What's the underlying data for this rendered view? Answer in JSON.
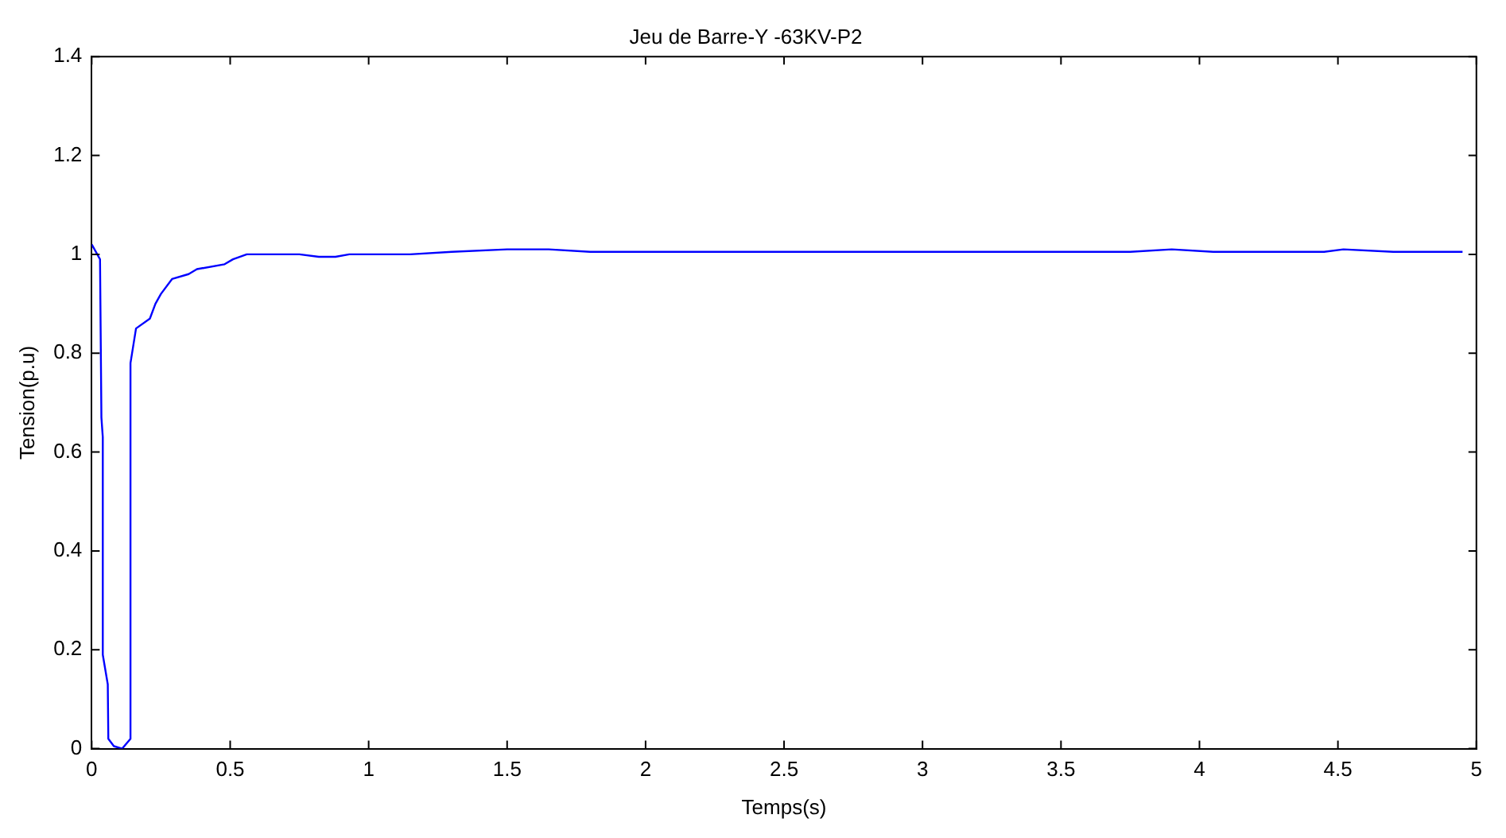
{
  "chart_data": {
    "type": "line",
    "title": "Jeu de Barre-Y -63KV-P2",
    "xlabel": "Temps(s)",
    "ylabel": "Tension(p.u)",
    "x": [
      0,
      0.03,
      0.035,
      0.04,
      0.04,
      0.058,
      0.06,
      0.08,
      0.11,
      0.14,
      0.14,
      0.16,
      0.21,
      0.23,
      0.25,
      0.29,
      0.35,
      0.38,
      0.48,
      0.51,
      0.56,
      0.75,
      0.82,
      0.88,
      0.93,
      1.15,
      1.3,
      1.5,
      1.65,
      1.8,
      3.75,
      3.9,
      4.05,
      4.45,
      4.52,
      4.7,
      4.95
    ],
    "series": [
      {
        "color": "#0000ff",
        "values": [
          1.02,
          0.99,
          0.67,
          0.63,
          0.19,
          0.13,
          0.02,
          0.005,
          0,
          0.02,
          0.78,
          0.85,
          0.87,
          0.9,
          0.92,
          0.95,
          0.96,
          0.97,
          0.98,
          0.99,
          1.0,
          1.0,
          0.995,
          0.995,
          1.0,
          1.0,
          1.005,
          1.01,
          1.01,
          1.005,
          1.005,
          1.01,
          1.005,
          1.005,
          1.01,
          1.005,
          1.005
        ]
      }
    ],
    "xlim": [
      0,
      5
    ],
    "xticks": [
      0,
      0.5,
      1,
      1.5,
      2,
      2.5,
      3,
      3.5,
      4,
      4.5,
      5
    ],
    "ylim": [
      0,
      1.4
    ],
    "yticks": [
      0,
      0.2,
      0.4,
      0.6,
      0.8,
      1,
      1.2,
      1.4
    ],
    "grid": false,
    "legend": false,
    "marker": "none",
    "line_style": "solid"
  }
}
